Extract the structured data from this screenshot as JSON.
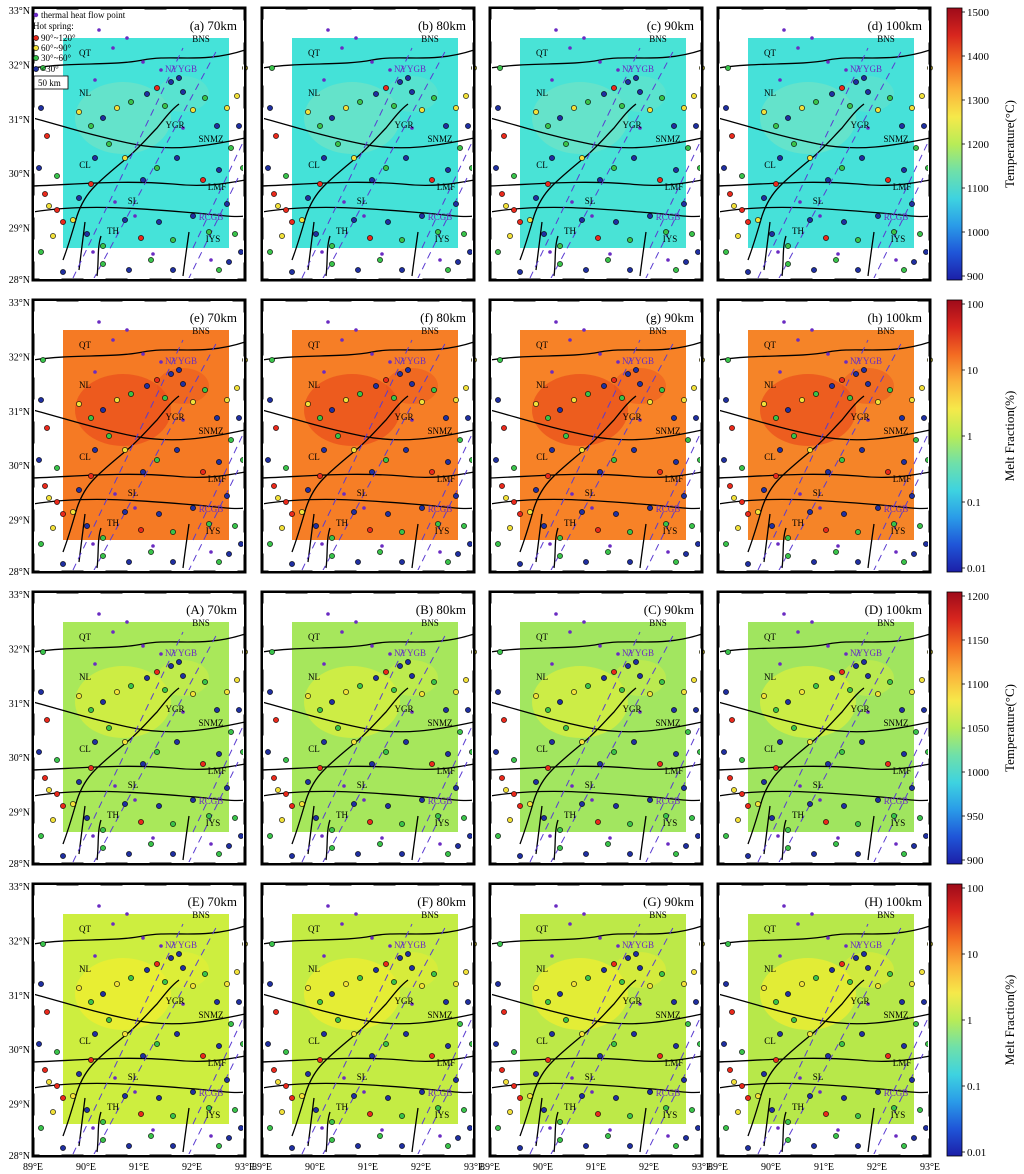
{
  "legend": {
    "heat_flow_label": "thermal heat flow point",
    "hot_spring_title": "Hot spring:",
    "items": [
      {
        "label": "90°~120°",
        "color": "#e8291c"
      },
      {
        "label": "60°~90°",
        "color": "#f1e03a"
      },
      {
        "label": "30°~60°",
        "color": "#39c24a"
      },
      {
        "label": "<30°",
        "color": "#1f2fa0"
      }
    ],
    "scale_label": "50 km"
  },
  "map_labels": [
    "QT",
    "BNS",
    "NYYGB",
    "NL",
    "YGR",
    "SNMZ",
    "CL",
    "LMF",
    "SL",
    "RCGB",
    "TH",
    "IYS"
  ],
  "lat_ticks": [
    "33°N",
    "32°N",
    "31°N",
    "30°N",
    "29°N",
    "28°N"
  ],
  "lon_ticks": [
    "89°E",
    "90°E",
    "91°E",
    "92°E",
    "93°E"
  ],
  "rows": [
    {
      "panels": [
        "(a) 70km",
        "(b) 80km",
        "(c) 90km",
        "(d) 100km"
      ],
      "fills": [
        "#45e3d9",
        "#44e2d8",
        "#49e3d6",
        "#46e1d9"
      ],
      "blob": "#6fe3c6",
      "colorbar": {
        "label": "Temperature(°C)",
        "ticks": [
          "1500",
          "1400",
          "1300",
          "1200",
          "1100",
          "1000",
          "900"
        ]
      }
    },
    {
      "panels": [
        "(e) 70km",
        "(f) 80km",
        "(g) 90km",
        "(h) 100km"
      ],
      "fills": [
        "#f57a24",
        "#f67e26",
        "#f78227",
        "#f58428"
      ],
      "blob": "#e9501c",
      "colorbar": {
        "label": "Melt Fraction(%)",
        "ticks": [
          "100",
          "10",
          "1",
          "0.1",
          "0.01"
        ]
      }
    },
    {
      "panels": [
        "(A) 70km",
        "(B) 80km",
        "(C) 90km",
        "(D) 100km"
      ],
      "fills": [
        "#a9e85a",
        "#a6e75c",
        "#a2e660",
        "#a0e55f"
      ],
      "blob": "#d9ef3e",
      "colorbar": {
        "label": "Temperature(°C)",
        "ticks": [
          "1200",
          "1150",
          "1100",
          "1050",
          "1000",
          "950",
          "900"
        ]
      }
    },
    {
      "panels": [
        "(E) 70km",
        "(F) 80km",
        "(G) 90km",
        "(H) 100km"
      ],
      "fills": [
        "#cdee3f",
        "#c4ec44",
        "#bde948",
        "#b7e84a"
      ],
      "blob": "#f0ee30",
      "colorbar": {
        "label": "Melt Fraction(%)",
        "ticks": [
          "100",
          "10",
          "1",
          "0.1",
          "0.01"
        ]
      }
    }
  ],
  "colors": {
    "frame": "#000000",
    "label_purple": "#6a2bc2",
    "dashed_line": "#5a3bd1"
  }
}
